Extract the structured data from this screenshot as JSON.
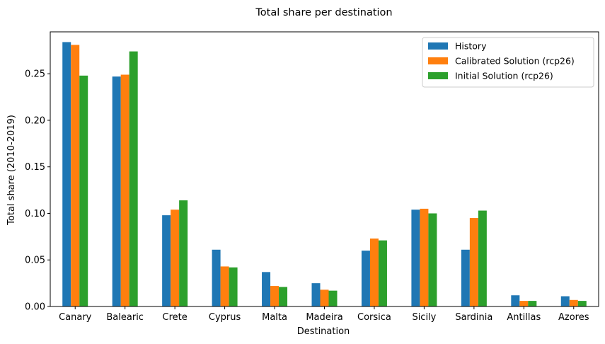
{
  "chart_data": {
    "type": "bar",
    "title": "Total share per destination",
    "xlabel": "Destination",
    "ylabel": "Total share (2010-2019)",
    "ylim": [
      0,
      0.295
    ],
    "yticks": [
      0.0,
      0.05,
      0.1,
      0.15,
      0.2,
      0.25
    ],
    "ytick_labels": [
      "0.00",
      "0.05",
      "0.10",
      "0.15",
      "0.20",
      "0.25"
    ],
    "grid": false,
    "legend_position": "top-right",
    "categories": [
      "Canary",
      "Balearic",
      "Crete",
      "Cyprus",
      "Malta",
      "Madeira",
      "Corsica",
      "Sicily",
      "Sardinia",
      "Antillas",
      "Azores"
    ],
    "series": [
      {
        "name": "History",
        "color": "#1f77b4",
        "values": [
          0.284,
          0.247,
          0.098,
          0.061,
          0.037,
          0.025,
          0.06,
          0.104,
          0.061,
          0.012,
          0.011
        ]
      },
      {
        "name": "Calibrated Solution (rcp26)",
        "color": "#ff7f0e",
        "values": [
          0.281,
          0.249,
          0.104,
          0.043,
          0.022,
          0.018,
          0.073,
          0.105,
          0.095,
          0.006,
          0.007
        ]
      },
      {
        "name": "Initial Solution (rcp26)",
        "color": "#2ca02c",
        "values": [
          0.248,
          0.274,
          0.114,
          0.042,
          0.021,
          0.017,
          0.071,
          0.1,
          0.103,
          0.006,
          0.006
        ]
      }
    ]
  }
}
